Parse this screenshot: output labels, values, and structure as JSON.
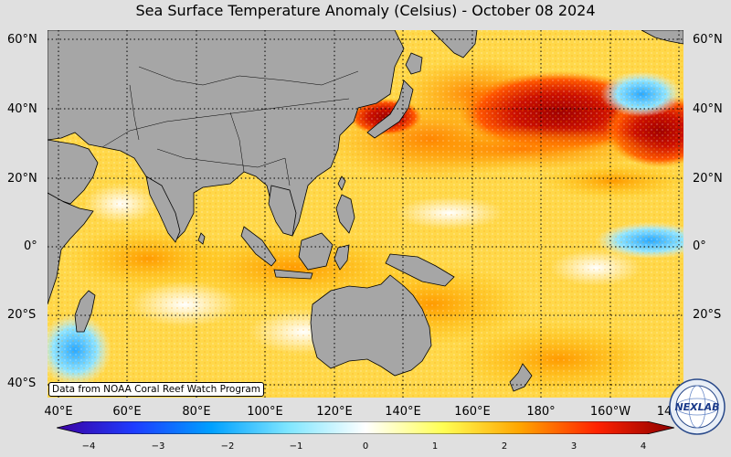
{
  "title": "Sea Surface Temperature Anomaly (Celsius) - October 08 2024",
  "lat_labels": [
    "60°N",
    "40°N",
    "20°N",
    "0°",
    "20°S",
    "40°S"
  ],
  "lon_labels": [
    "40°E",
    "60°E",
    "80°E",
    "100°E",
    "120°E",
    "140°E",
    "160°E",
    "180°",
    "160°W",
    "14"
  ],
  "credit": "Data from NOAA Coral Reef Watch Program",
  "colorbar": {
    "ticks": [
      "−4",
      "−3",
      "−2",
      "−1",
      "0",
      "1",
      "2",
      "3",
      "4"
    ],
    "min": -4,
    "max": 4,
    "colors": [
      "#3c00a0",
      "#1e3cff",
      "#00a0ff",
      "#7fe6ff",
      "#ffffff",
      "#ffff55",
      "#ffa500",
      "#ff2200",
      "#8b0000"
    ]
  },
  "logo_text": "NEXLAB",
  "colors": {
    "land": "#a6a6a6",
    "background": "#e0e0e0"
  }
}
